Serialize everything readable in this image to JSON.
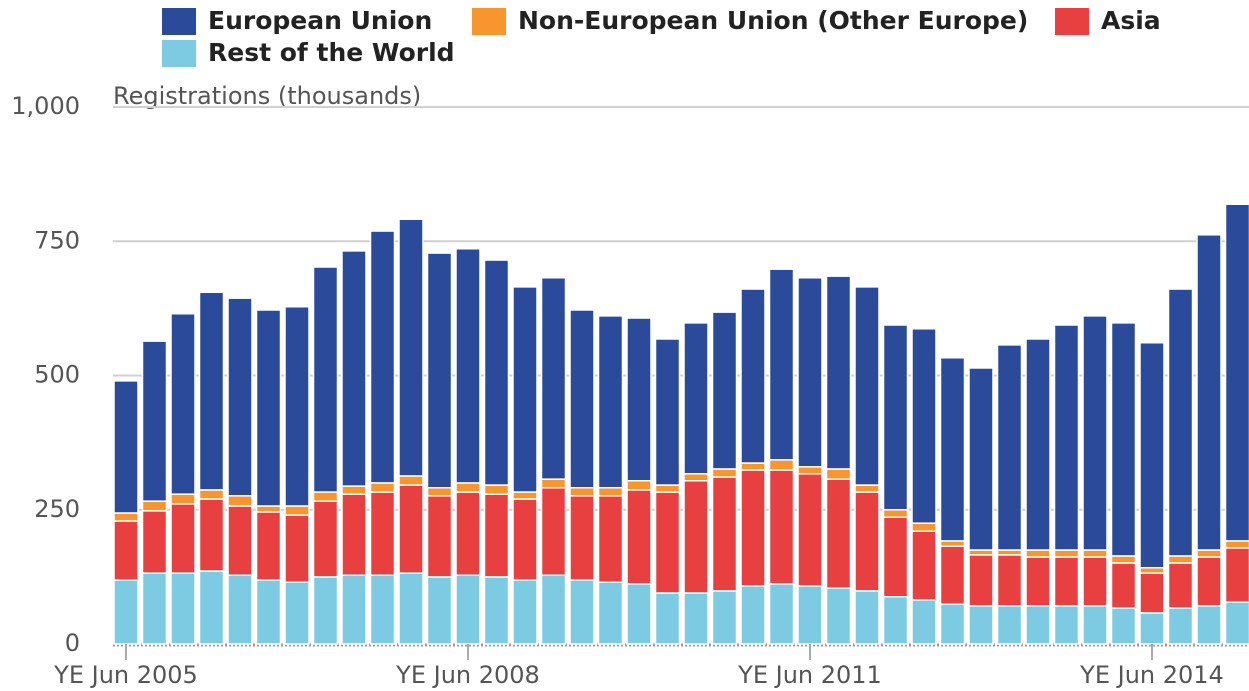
{
  "chart_data": {
    "type": "stacked-bar",
    "ylabel": "Registrations (thousands)",
    "categories": [
      "YE Jun 2005",
      null,
      null,
      null,
      null,
      null,
      null,
      null,
      null,
      null,
      null,
      null,
      "YE Jun 2008",
      null,
      null,
      null,
      null,
      null,
      null,
      null,
      null,
      null,
      null,
      null,
      "YE Jun 2011",
      null,
      null,
      null,
      null,
      null,
      null,
      null,
      null,
      null,
      null,
      null,
      "YE Jun 2014",
      null,
      null,
      null
    ],
    "series": [
      {
        "name": "European Union",
        "color": "#2b4a9a",
        "values": [
          246,
          298,
          336,
          368,
          368,
          365,
          371,
          419,
          438,
          469,
          478,
          437,
          436,
          419,
          382,
          375,
          331,
          320,
          303,
          272,
          281,
          292,
          324,
          355,
          352,
          359,
          369,
          344,
          362,
          341,
          339,
          382,
          393,
          419,
          436,
          434,
          419,
          497,
          587,
          627
        ]
      },
      {
        "name": "Non-European Union (Other Europe)",
        "color": "#f7962f",
        "values": [
          15,
          18,
          18,
          17,
          19,
          11,
          17,
          17,
          15,
          17,
          17,
          15,
          17,
          17,
          13,
          16,
          15,
          15,
          17,
          13,
          13,
          15,
          13,
          19,
          13,
          19,
          13,
          14,
          15,
          10,
          9,
          9,
          13,
          13,
          13,
          13,
          10,
          13,
          13,
          13
        ]
      },
      {
        "name": "Asia",
        "color": "#e84040",
        "values": [
          110,
          116,
          129,
          134,
          129,
          127,
          125,
          141,
          151,
          155,
          164,
          151,
          155,
          154,
          151,
          163,
          157,
          161,
          175,
          188,
          209,
          212,
          216,
          212,
          209,
          203,
          184,
          148,
          128,
          108,
          95,
          95,
          91,
          91,
          91,
          84,
          74,
          84,
          91,
          101
        ]
      },
      {
        "name": "Rest of the World",
        "color": "#7ccbe2",
        "values": [
          119,
          132,
          132,
          136,
          128,
          119,
          115,
          125,
          128,
          128,
          132,
          125,
          128,
          125,
          119,
          128,
          119,
          115,
          112,
          95,
          95,
          99,
          108,
          112,
          108,
          104,
          99,
          88,
          82,
          74,
          71,
          71,
          71,
          71,
          71,
          67,
          58,
          67,
          71,
          78
        ]
      }
    ],
    "ylim": [
      0,
      1000
    ],
    "yticks": [
      0,
      250,
      500,
      750,
      {
        "value": 1000,
        "label": "1,000"
      }
    ],
    "grid": true
  }
}
